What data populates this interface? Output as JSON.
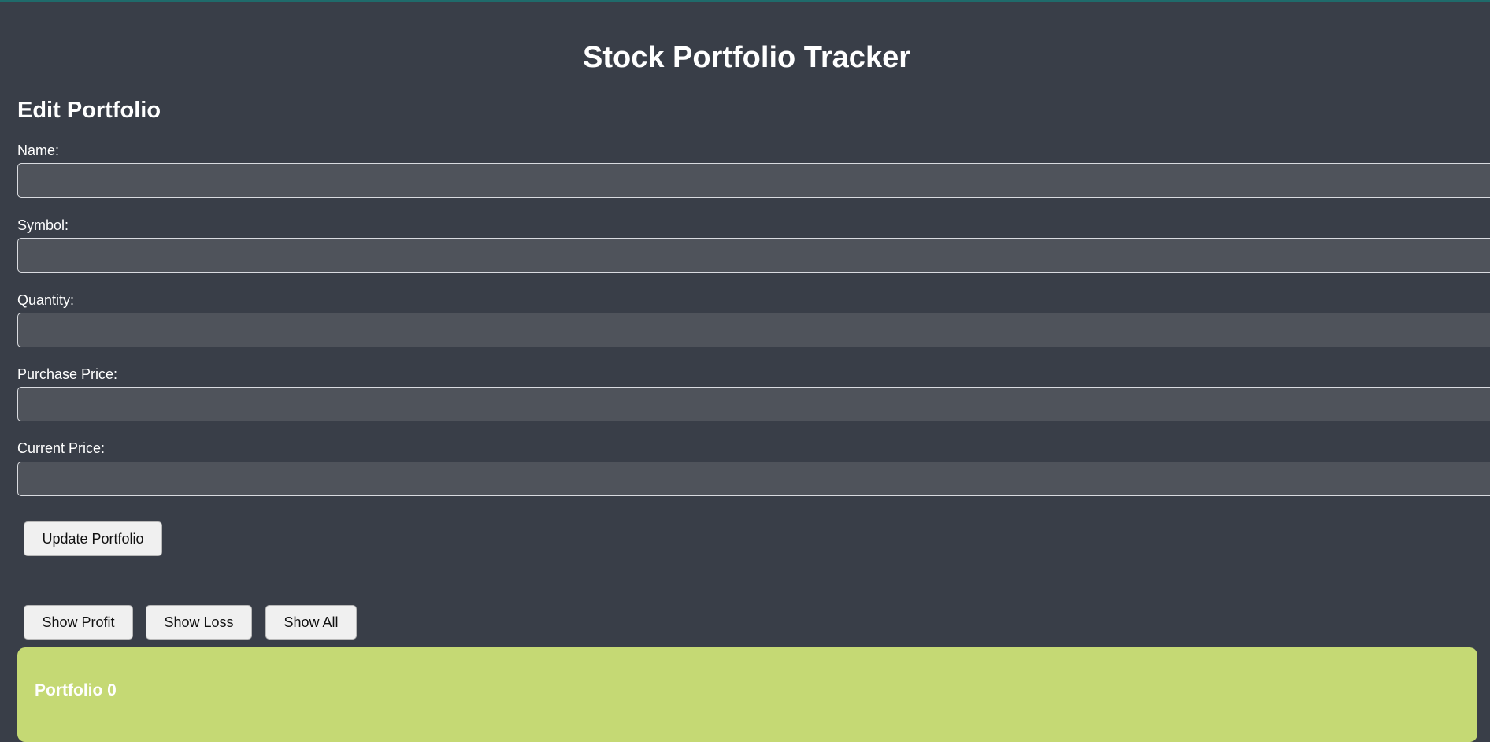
{
  "app": {
    "title": "Stock Portfolio Tracker"
  },
  "edit_form": {
    "heading": "Edit Portfolio",
    "fields": [
      {
        "label": "Name:",
        "value": "",
        "placeholder": ""
      },
      {
        "label": "Symbol:",
        "value": "",
        "placeholder": ""
      },
      {
        "label": "Quantity:",
        "value": "",
        "placeholder": ""
      },
      {
        "label": "Purchase Price:",
        "value": "",
        "placeholder": ""
      },
      {
        "label": "Current Price:",
        "value": "",
        "placeholder": ""
      }
    ],
    "submit_label": "Update Portfolio"
  },
  "filters": {
    "show_profit": "Show Profit",
    "show_loss": "Show Loss",
    "show_all": "Show All"
  },
  "portfolios": [
    {
      "title": "Portfolio 0",
      "color": "#c5d974"
    }
  ],
  "colors": {
    "background": "#393e48",
    "input_background": "#4f535b",
    "button_background": "#f0f0f0"
  }
}
